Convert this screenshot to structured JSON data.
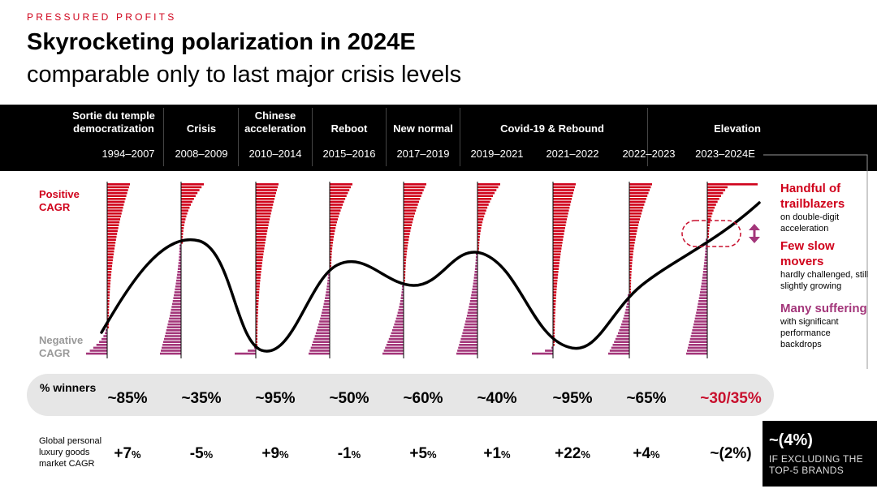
{
  "header": {
    "eyebrow": "PRESSURED PROFITS",
    "title": "Skyrocketing polarization in 2024E",
    "subtitle": "comparable only to last major crisis levels"
  },
  "phases": [
    "Sortie du temple democratization",
    "Crisis",
    "Chinese acceleration",
    "Reboot",
    "New normal",
    "Covid-19 & Rebound",
    "Elevation"
  ],
  "periods": [
    "1994–2007",
    "2008–2009",
    "2010–2014",
    "2015–2016",
    "2017–2019",
    "2019–2021",
    "2021–2022",
    "2022–2023",
    "2023–2024E"
  ],
  "axis": {
    "positive": "Positive CAGR",
    "negative": "Negative CAGR"
  },
  "winners": {
    "label": "% winners",
    "values": [
      "~85%",
      "~35%",
      "~95%",
      "~50%",
      "~60%",
      "~40%",
      "~95%",
      "~65%",
      "~30/35%"
    ]
  },
  "market": {
    "label": "Global personal luxury goods market CAGR",
    "values": [
      {
        "sign": "+7",
        "unit": "%"
      },
      {
        "sign": "-5",
        "unit": "%"
      },
      {
        "sign": "+9",
        "unit": "%"
      },
      {
        "sign": "-1",
        "unit": "%"
      },
      {
        "sign": "+5",
        "unit": "%"
      },
      {
        "sign": "+1",
        "unit": "%"
      },
      {
        "sign": "+22",
        "unit": "%"
      },
      {
        "sign": "+4",
        "unit": "%"
      },
      {
        "sign": "~(2%)",
        "unit": ""
      }
    ]
  },
  "note": {
    "value": "~(4%)",
    "text": "IF EXCLUDING THE TOP-5 BRANDS"
  },
  "legend": [
    {
      "title": "Handful of trailblazers",
      "desc": "on double-digit acceleration",
      "color": "#d0021b"
    },
    {
      "title": "Few slow movers",
      "desc": "hardly challenged, still slightly growing",
      "color": "#d0021b"
    },
    {
      "title": "Many suffering",
      "desc": "with significant performance backdrops",
      "color": "#a3367a"
    }
  ],
  "colors": {
    "positive": "#d0021b",
    "negative": "#a3367a",
    "highlight": "#c8102e",
    "band": "#000000"
  },
  "chart_data": {
    "type": "bar",
    "categories": [
      "1994–2007",
      "2008–2009",
      "2010–2014",
      "2015–2016",
      "2017–2019",
      "2019–2021",
      "2021–2022",
      "2022–2023",
      "2023–2024E"
    ],
    "winners_share_pct": [
      85,
      35,
      95,
      50,
      60,
      40,
      95,
      65,
      32.5
    ],
    "market_cagr_pct": [
      7,
      -5,
      9,
      -1,
      5,
      1,
      22,
      4,
      -2
    ]
  }
}
